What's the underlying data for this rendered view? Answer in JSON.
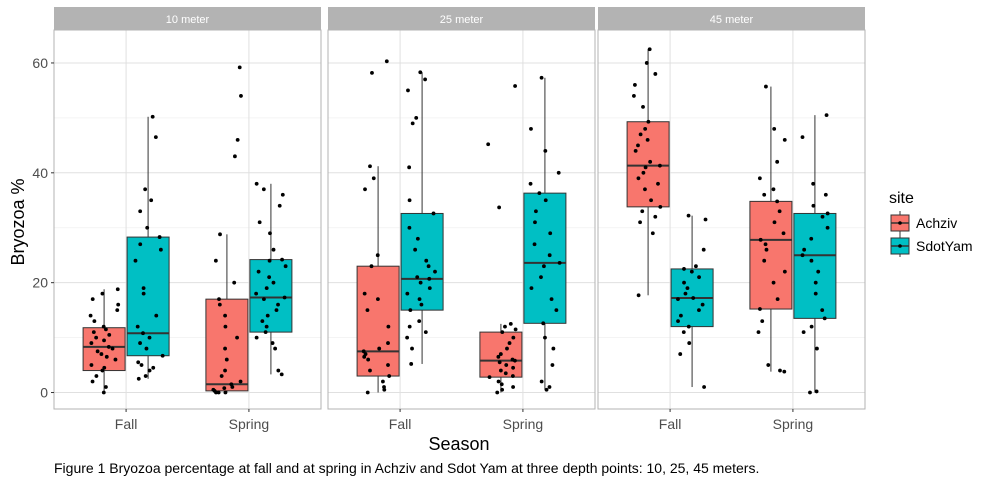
{
  "caption": "Figure 1 Bryozoa percentage at fall and at spring in Achziv and Sdot Yam at three depth points: 10, 25, 45 meters.",
  "chart_data": {
    "type": "boxplot",
    "xlabel": "Season",
    "ylabel": "Bryozoa %",
    "ylim": [
      -3,
      66
    ],
    "yticks": [
      0,
      20,
      40,
      60
    ],
    "categories": [
      "Fall",
      "Spring"
    ],
    "grid": true,
    "legend": {
      "title": "site",
      "placement": "right",
      "entries": [
        {
          "name": "Achziv",
          "color": "#F8766D"
        },
        {
          "name": "SdotYam",
          "color": "#00BFC4"
        }
      ]
    },
    "panels": [
      {
        "label": "10 meter",
        "groups": [
          {
            "season": "Fall",
            "site": "Achziv",
            "min": 0,
            "q1": 4,
            "median": 8.3,
            "q3": 11.8,
            "max": 18.8,
            "points": [
              0,
              1,
              2,
              3,
              4,
              4.5,
              5,
              6,
              6.5,
              7,
              7.5,
              8,
              8.3,
              9,
              9.5,
              10,
              10.5,
              11,
              11.5,
              12,
              13,
              14,
              15,
              16,
              17,
              18,
              18.8
            ]
          },
          {
            "season": "Fall",
            "site": "SdotYam",
            "min": 2.5,
            "q1": 6.7,
            "median": 10.8,
            "q3": 28.3,
            "max": 50.2,
            "points": [
              2.5,
              3,
              4,
              4.5,
              5,
              5.5,
              6.7,
              8,
              9,
              10,
              10.8,
              12,
              14,
              18,
              19,
              24,
              26,
              27,
              28.3,
              30,
              33,
              35,
              37,
              46.5,
              50.2
            ]
          },
          {
            "season": "Spring",
            "site": "Achziv",
            "min": 0,
            "q1": 0.3,
            "median": 1.5,
            "q3": 17,
            "max": 28.8,
            "points": [
              0,
              0,
              0,
              0.3,
              0.5,
              0.8,
              1,
              1.5,
              2,
              3,
              4,
              6,
              8,
              10,
              12,
              14,
              16,
              17,
              20,
              24,
              28.8,
              43,
              46,
              54,
              59.2
            ]
          },
          {
            "season": "Spring",
            "site": "SdotYam",
            "min": 3.3,
            "q1": 11,
            "median": 17.3,
            "q3": 24.2,
            "max": 38,
            "points": [
              3.3,
              4,
              8,
              9,
              10,
              11,
              12,
              13,
              14,
              15,
              16,
              17,
              17.3,
              18,
              19,
              20,
              21,
              22,
              23,
              24,
              24.2,
              26,
              29,
              31,
              34,
              36,
              37,
              38
            ]
          }
        ]
      },
      {
        "label": "25 meter",
        "groups": [
          {
            "season": "Fall",
            "site": "Achziv",
            "min": 0,
            "q1": 3,
            "median": 7.5,
            "q3": 23,
            "max": 41.2,
            "points": [
              0,
              0.5,
              1,
              2,
              3,
              4,
              5,
              6,
              6.5,
              7,
              7.5,
              8,
              9,
              12,
              15,
              17,
              18,
              23,
              25,
              37,
              39,
              41.2,
              58.2,
              60.3
            ]
          },
          {
            "season": "Fall",
            "site": "SdotYam",
            "min": 5.2,
            "q1": 15,
            "median": 20.7,
            "q3": 32.6,
            "max": 58.3,
            "points": [
              5.2,
              8,
              10,
              11,
              12,
              13,
              15,
              16,
              17,
              18,
              19,
              20,
              20.7,
              21,
              22,
              23,
              24,
              26,
              28,
              30,
              32.6,
              35,
              41,
              49,
              50,
              55,
              57,
              58.3
            ]
          },
          {
            "season": "Spring",
            "site": "Achziv",
            "min": 0,
            "q1": 2.8,
            "median": 5.8,
            "q3": 11,
            "max": 12.5,
            "points": [
              0,
              0.5,
              1,
              1.5,
              2,
              2.8,
              3,
              3.5,
              4,
              4.5,
              5,
              5.5,
              5.8,
              6,
              6.5,
              7,
              8,
              9,
              10,
              11,
              11.5,
              12,
              12.5,
              33.7,
              45.2,
              55.8
            ]
          },
          {
            "season": "Spring",
            "site": "SdotYam",
            "min": 0.5,
            "q1": 12.6,
            "median": 23.6,
            "q3": 36.3,
            "max": 57.3,
            "points": [
              0.5,
              1,
              2,
              5,
              8,
              10,
              12.6,
              15,
              17,
              19,
              21,
              23,
              23.6,
              25,
              27,
              29,
              31,
              33,
              35,
              36.3,
              38,
              40,
              44,
              48,
              57.3
            ]
          }
        ]
      },
      {
        "label": "45 meter",
        "groups": [
          {
            "season": "Fall",
            "site": "Achziv",
            "min": 17.7,
            "q1": 33.8,
            "median": 41.3,
            "q3": 49.3,
            "max": 62.5,
            "points": [
              17.7,
              29,
              31,
              32,
              33,
              33.8,
              35,
              37,
              38,
              39,
              40,
              41,
              41.3,
              42,
              44,
              45,
              46,
              47,
              48,
              49.3,
              52,
              54,
              56,
              58,
              60,
              62.5
            ]
          },
          {
            "season": "Fall",
            "site": "SdotYam",
            "min": 1,
            "q1": 12,
            "median": 17.2,
            "q3": 22.5,
            "max": 32.2,
            "points": [
              1,
              7,
              9,
              11,
              12,
              13,
              14,
              15,
              16,
              17,
              17.2,
              18,
              19,
              20,
              21,
              22,
              22.5,
              23,
              26,
              31.5,
              32.2
            ]
          },
          {
            "season": "Spring",
            "site": "Achziv",
            "min": 3.8,
            "q1": 15.2,
            "median": 27.8,
            "q3": 34.8,
            "max": 55.7,
            "points": [
              3.8,
              4,
              5,
              11,
              13,
              15.2,
              17,
              20,
              22,
              24,
              26,
              27,
              27.8,
              29,
              31,
              33,
              34.8,
              36,
              37,
              39,
              42,
              46,
              48,
              55.7
            ]
          },
          {
            "season": "Spring",
            "site": "SdotYam",
            "min": 0,
            "q1": 13.5,
            "median": 25,
            "q3": 32.6,
            "max": 50.5,
            "points": [
              0,
              0.2,
              8,
              11,
              12,
              13.5,
              15,
              18,
              20,
              22,
              24,
              25,
              26,
              28,
              30,
              32,
              32.6,
              34,
              36,
              38,
              46.5,
              50.5
            ]
          }
        ]
      }
    ]
  }
}
